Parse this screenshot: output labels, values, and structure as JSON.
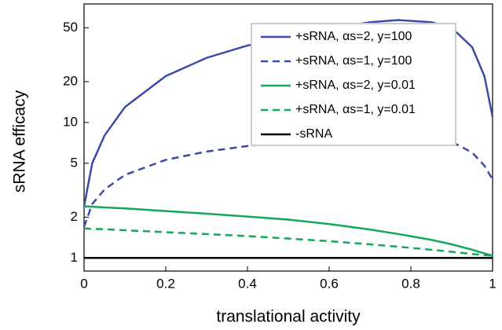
{
  "chart_data": {
    "type": "line",
    "xlabel": "translational activity",
    "ylabel": "sRNA efficacy",
    "x": [
      0,
      0.02,
      0.05,
      0.1,
      0.2,
      0.3,
      0.4,
      0.5,
      0.6,
      0.7,
      0.77,
      0.85,
      0.9,
      0.95,
      0.98,
      1
    ],
    "series": [
      {
        "name": "+sRNA, αs=2, y=100",
        "color": "#3b4ba6",
        "dash": false,
        "values": [
          2.4,
          5,
          8,
          13,
          22,
          30,
          37,
          43,
          49,
          55,
          57,
          55,
          50,
          36,
          22,
          11
        ]
      },
      {
        "name": "+sRNA, αs=1, y=100",
        "color": "#3b4ba6",
        "dash": true,
        "values": [
          1.7,
          2.5,
          3.2,
          4.1,
          5.3,
          6.1,
          6.7,
          7.2,
          7.6,
          7.9,
          8.0,
          7.8,
          7.2,
          6.0,
          4.8,
          3.8
        ]
      },
      {
        "name": "+sRNA, αs=2, y=0.01",
        "color": "#13a85a",
        "dash": false,
        "values": [
          2.4,
          2.39,
          2.36,
          2.32,
          2.22,
          2.12,
          2.02,
          1.92,
          1.78,
          1.62,
          1.5,
          1.36,
          1.26,
          1.15,
          1.08,
          1.04
        ]
      },
      {
        "name": "+sRNA, αs=1, y=0.01",
        "color": "#13a85a",
        "dash": true,
        "values": [
          1.65,
          1.64,
          1.63,
          1.6,
          1.55,
          1.5,
          1.45,
          1.39,
          1.33,
          1.26,
          1.21,
          1.15,
          1.11,
          1.07,
          1.05,
          1.04
        ]
      },
      {
        "name": "-sRNA",
        "color": "#000000",
        "dash": false,
        "values": [
          1,
          1,
          1,
          1,
          1,
          1,
          1,
          1,
          1,
          1,
          1,
          1,
          1,
          1,
          1,
          1
        ]
      }
    ],
    "xlim": [
      0,
      1
    ],
    "xticks": [
      0,
      0.2,
      0.4,
      0.6,
      0.8,
      1
    ],
    "ylim": [
      0.8,
      75
    ],
    "yticks": [
      1,
      2,
      5,
      10,
      20,
      50
    ],
    "ylog": true,
    "legend": "upper right"
  }
}
